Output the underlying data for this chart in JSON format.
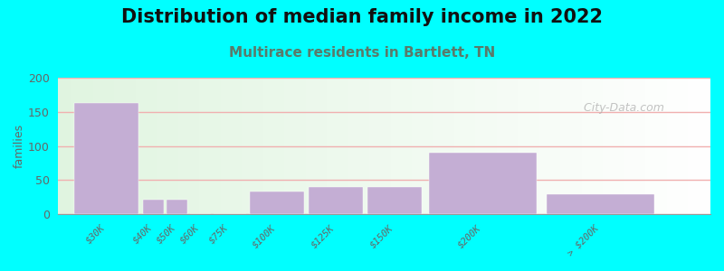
{
  "title": "Distribution of median family income in 2022",
  "subtitle": "Multirace residents in Bartlett, TN",
  "ylabel": "families",
  "background_color": "#00FFFF",
  "bar_color": "#c4aed4",
  "bar_edge_color": "#c4aed4",
  "watermark": " City-Data.com",
  "title_fontsize": 15,
  "subtitle_fontsize": 11,
  "subtitle_color": "#5a7a6a",
  "ylim": [
    0,
    200
  ],
  "yticks": [
    0,
    50,
    100,
    150,
    200
  ],
  "categories": [
    "$30K",
    "$40K",
    "$50K",
    "$60K",
    "$75K",
    "$100K",
    "$125K",
    "$150K",
    "$200K",
    "> $200K"
  ],
  "bin_edges": [
    0,
    30,
    40,
    50,
    60,
    75,
    100,
    125,
    150,
    200,
    250
  ],
  "values": [
    163,
    22,
    22,
    0,
    0,
    33,
    40,
    40,
    90,
    30
  ],
  "grid_color": "#f0b0b0",
  "tick_color": "#666666",
  "spine_color": "#999999"
}
